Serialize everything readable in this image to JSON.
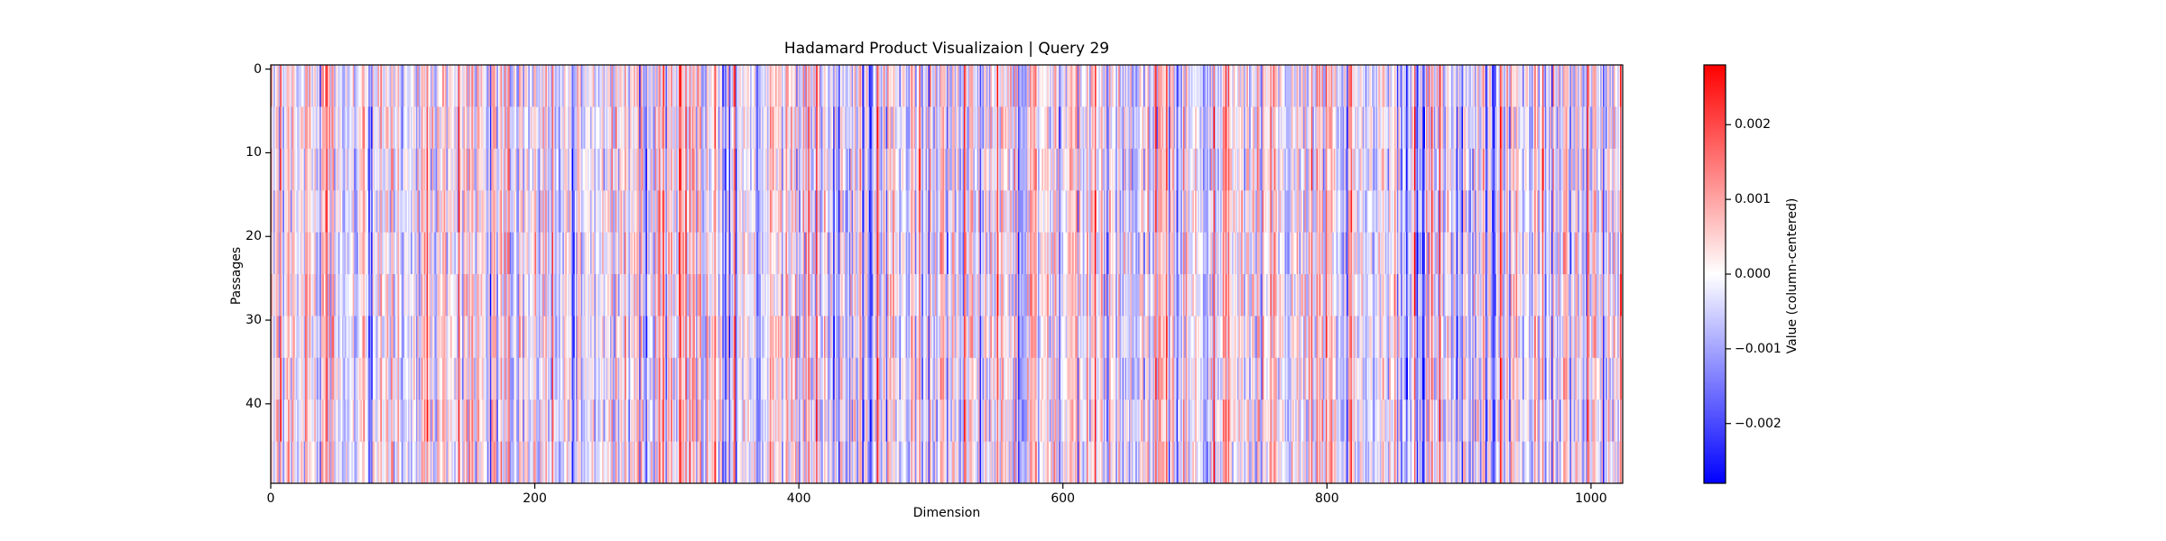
{
  "chart_data": {
    "type": "heatmap",
    "title": "Hadamard Product Visualizaion | Query 29",
    "xlabel": "Dimension",
    "ylabel": "Passages",
    "n_columns": 1024,
    "n_rows": 50,
    "xlim": [
      0,
      1024
    ],
    "ylim": [
      0,
      50
    ],
    "x_ticks": [
      0,
      200,
      400,
      600,
      800,
      1000
    ],
    "y_ticks": [
      0,
      10,
      20,
      30,
      40
    ],
    "colormap": "bwr",
    "colorbar": {
      "label": "Value (column-centered)",
      "range": [
        -0.0028,
        0.0028
      ],
      "ticks": [
        -0.002,
        -0.001,
        0.0,
        0.001,
        0.002
      ],
      "tick_labels": [
        "−0.002",
        "−0.001",
        "0.000",
        "0.001",
        "0.002"
      ],
      "colors": {
        "low": "#0000ff",
        "mid": "#ffffff",
        "high": "#ff0000"
      }
    }
  }
}
